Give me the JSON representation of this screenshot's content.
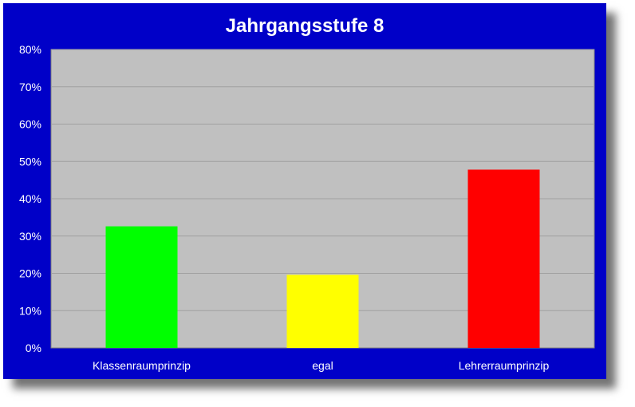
{
  "chart_data": {
    "type": "bar",
    "title": "Jahrgangsstufe 8",
    "categories": [
      "Klassenraumprinzip",
      "egal",
      "Lehrerraumprinzip"
    ],
    "values": [
      32.6,
      19.6,
      47.8
    ],
    "bar_colors": [
      "#00ff00",
      "#ffff00",
      "#ff0000"
    ],
    "y_unit": "%",
    "ylim": [
      0,
      80
    ],
    "y_ticks": [
      "0%",
      "10%",
      "20%",
      "30%",
      "40%",
      "50%",
      "60%",
      "70%",
      "80%"
    ],
    "grid": true,
    "legend": "none"
  },
  "colors": {
    "frame_background": "#0000c8",
    "plot_background": "#c0c0c0",
    "text": "#ffffff"
  }
}
